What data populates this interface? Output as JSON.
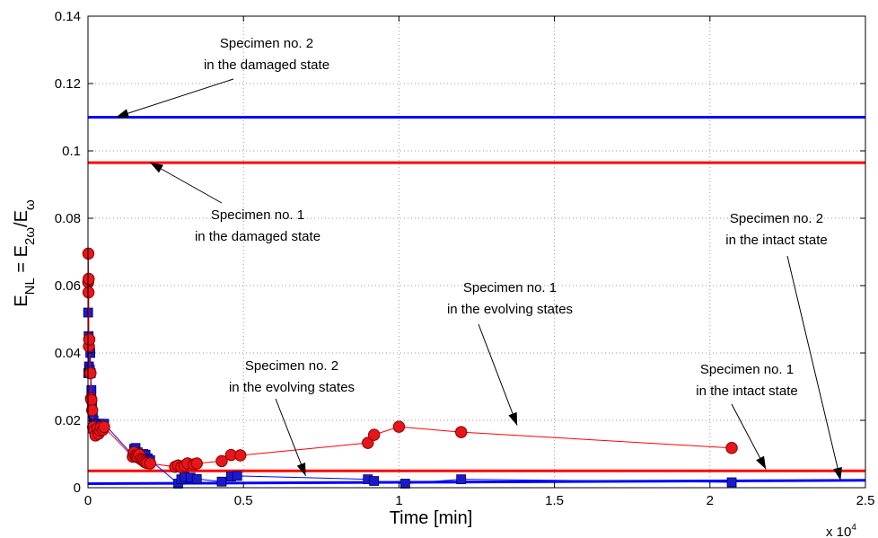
{
  "chart_data": {
    "type": "line",
    "xlabel": "Time [min]",
    "x_multiplier": "x 10",
    "x_multiplier_exp": "4",
    "ylabel": {
      "e1": "E",
      "s1": "NL",
      "eq": " = E",
      "s2": "2ω",
      "slash": "/E",
      "s3": "ω"
    },
    "xlim": [
      0,
      2.5
    ],
    "ylim": [
      0,
      0.14
    ],
    "grid": true,
    "xticks": [
      {
        "value": 0,
        "label": "0"
      },
      {
        "value": 0.5,
        "label": "0.5"
      },
      {
        "value": 1,
        "label": "1"
      },
      {
        "value": 1.5,
        "label": "1.5"
      },
      {
        "value": 2,
        "label": "2"
      },
      {
        "value": 2.5,
        "label": "2.5"
      }
    ],
    "yticks": [
      {
        "value": 0,
        "label": "0"
      },
      {
        "value": 0.02,
        "label": "0.02"
      },
      {
        "value": 0.04,
        "label": "0.04"
      },
      {
        "value": 0.06,
        "label": "0.06"
      },
      {
        "value": 0.08,
        "label": "0.08"
      },
      {
        "value": 0.1,
        "label": "0.1"
      },
      {
        "value": 0.12,
        "label": "0.12"
      },
      {
        "value": 0.14,
        "label": "0.14"
      }
    ],
    "colors": {
      "red": "#ff0000",
      "blue": "#0000ff",
      "marker_red": "#e8161b",
      "marker_blue": "#1a1acc"
    },
    "reference_lines": [
      {
        "id": "specimen2-damaged",
        "y": 0.11,
        "color": "#0000ff"
      },
      {
        "id": "specimen1-damaged",
        "y": 0.0965,
        "color": "#ff0000"
      },
      {
        "id": "specimen1-intact",
        "y": 0.005,
        "color": "#ff0000"
      },
      {
        "id": "specimen2-intact",
        "x": [
          0,
          2.5
        ],
        "y": [
          0.0012,
          0.0022
        ],
        "color": "#0000ff"
      }
    ],
    "series": [
      {
        "id": "specimen1-evolving",
        "color": "#ff0000",
        "marker": "circle",
        "x": [
          0.0008,
          0.0012,
          0.0018,
          0.0022,
          0.003,
          0.0038,
          0.0045,
          0.0065,
          0.0082,
          0.0095,
          0.011,
          0.0135,
          0.0165,
          0.0195,
          0.024,
          0.03,
          0.034,
          0.038,
          0.042,
          0.048,
          0.052,
          0.144,
          0.148,
          0.152,
          0.156,
          0.16,
          0.165,
          0.17,
          0.175,
          0.18,
          0.185,
          0.19,
          0.2,
          0.28,
          0.29,
          0.3,
          0.31,
          0.32,
          0.34,
          0.35,
          0.43,
          0.46,
          0.49,
          0.9,
          0.92,
          1.0,
          1.2,
          2.07
        ],
        "y": [
          0.061,
          0.0695,
          0.058,
          0.062,
          0.042,
          0.044,
          0.044,
          0.034,
          0.034,
          0.0265,
          0.026,
          0.023,
          0.018,
          0.017,
          0.0155,
          0.0175,
          0.016,
          0.017,
          0.018,
          0.0172,
          0.018,
          0.0092,
          0.0105,
          0.0095,
          0.0092,
          0.009,
          0.0098,
          0.0085,
          0.0082,
          0.0078,
          0.0075,
          0.0073,
          0.0072,
          0.0062,
          0.0066,
          0.0061,
          0.0065,
          0.0072,
          0.0069,
          0.0072,
          0.0079,
          0.0097,
          0.0096,
          0.0133,
          0.0157,
          0.0181,
          0.0165,
          0.0118
        ]
      },
      {
        "id": "specimen2-evolving",
        "color": "#0000ff",
        "marker": "square",
        "x": [
          0.0005,
          0.001,
          0.002,
          0.0032,
          0.0045,
          0.006,
          0.0075,
          0.009,
          0.011,
          0.013,
          0.0155,
          0.018,
          0.021,
          0.024,
          0.027,
          0.03,
          0.034,
          0.038,
          0.043,
          0.048,
          0.052,
          0.143,
          0.148,
          0.153,
          0.16,
          0.17,
          0.178,
          0.185,
          0.192,
          0.2,
          0.29,
          0.3,
          0.31,
          0.33,
          0.35,
          0.43,
          0.46,
          0.48,
          0.9,
          0.92,
          1.02,
          1.2,
          2.07
        ],
        "y": [
          0.052,
          0.034,
          0.045,
          0.036,
          0.043,
          0.035,
          0.04,
          0.034,
          0.029,
          0.025,
          0.022,
          0.02,
          0.019,
          0.018,
          0.0182,
          0.0185,
          0.019,
          0.0178,
          0.0185,
          0.0188,
          0.019,
          0.0098,
          0.0115,
          0.0118,
          0.0105,
          0.0095,
          0.01,
          0.0098,
          0.0087,
          0.0082,
          0.0012,
          0.0025,
          0.0032,
          0.003,
          0.0026,
          0.0018,
          0.0033,
          0.0035,
          0.0025,
          0.002,
          0.0012,
          0.0025,
          0.0016
        ]
      }
    ],
    "annotations": [
      {
        "id": "ann-s2-damaged",
        "lines": [
          "Specimen no. 2",
          "in the damaged state"
        ],
        "arrow_to": [
          0.09,
          0.11
        ]
      },
      {
        "id": "ann-s1-damaged",
        "lines": [
          "Specimen no. 1",
          "in the damaged state"
        ],
        "arrow_to": [
          0.2,
          0.0965
        ]
      },
      {
        "id": "ann-s2-intact",
        "lines": [
          "Specimen no. 2",
          "in the intact state"
        ],
        "arrow_to": [
          2.42,
          0.0022
        ]
      },
      {
        "id": "ann-s1-evolving",
        "lines": [
          "Specimen no. 1",
          "in the evolving states"
        ],
        "arrow_to": [
          1.38,
          0.0185
        ]
      },
      {
        "id": "ann-s2-evolving",
        "lines": [
          "Specimen no. 2",
          "in the evolving states"
        ],
        "arrow_to": [
          0.7,
          0.0035
        ]
      },
      {
        "id": "ann-s1-intact",
        "lines": [
          "Specimen no. 1",
          "in the intact state"
        ],
        "arrow_to": [
          2.18,
          0.0055
        ]
      }
    ]
  }
}
